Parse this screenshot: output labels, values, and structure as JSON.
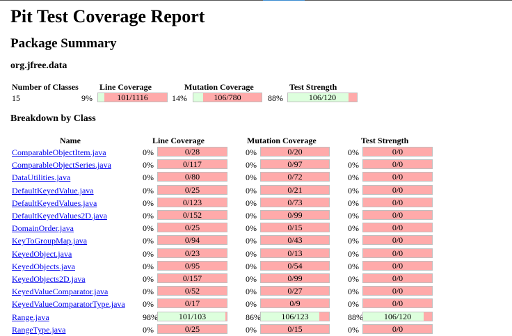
{
  "title": "Pit Test Coverage Report",
  "package_summary_heading": "Package Summary",
  "package_name": "org.jfree.data",
  "summary": {
    "headers": {
      "classes": "Number of Classes",
      "line": "Line Coverage",
      "mutation": "Mutation Coverage",
      "strength": "Test Strength"
    },
    "classes": "15",
    "line": {
      "pct": "9%",
      "text": "101/1116",
      "fraction": 0.09
    },
    "mutation": {
      "pct": "14%",
      "text": "106/780",
      "fraction": 0.14
    },
    "strength": {
      "pct": "88%",
      "text": "106/120",
      "fraction": 0.88
    }
  },
  "breakdown_heading": "Breakdown by Class",
  "table_headers": {
    "name": "Name",
    "line": "Line Coverage",
    "mutation": "Mutation Coverage",
    "strength": "Test Strength"
  },
  "rows": [
    {
      "name": "ComparableObjectItem.java",
      "line_pct": "0%",
      "line": "0/28",
      "line_f": 0,
      "mut_pct": "0%",
      "mut": "0/20",
      "mut_f": 0,
      "str_pct": "0%",
      "str": "0/0",
      "str_f": 0
    },
    {
      "name": "ComparableObjectSeries.java",
      "line_pct": "0%",
      "line": "0/117",
      "line_f": 0,
      "mut_pct": "0%",
      "mut": "0/97",
      "mut_f": 0,
      "str_pct": "0%",
      "str": "0/0",
      "str_f": 0
    },
    {
      "name": "DataUtilities.java",
      "line_pct": "0%",
      "line": "0/80",
      "line_f": 0,
      "mut_pct": "0%",
      "mut": "0/72",
      "mut_f": 0,
      "str_pct": "0%",
      "str": "0/0",
      "str_f": 0
    },
    {
      "name": "DefaultKeyedValue.java",
      "line_pct": "0%",
      "line": "0/25",
      "line_f": 0,
      "mut_pct": "0%",
      "mut": "0/21",
      "mut_f": 0,
      "str_pct": "0%",
      "str": "0/0",
      "str_f": 0
    },
    {
      "name": "DefaultKeyedValues.java",
      "line_pct": "0%",
      "line": "0/123",
      "line_f": 0,
      "mut_pct": "0%",
      "mut": "0/73",
      "mut_f": 0,
      "str_pct": "0%",
      "str": "0/0",
      "str_f": 0
    },
    {
      "name": "DefaultKeyedValues2D.java",
      "line_pct": "0%",
      "line": "0/152",
      "line_f": 0,
      "mut_pct": "0%",
      "mut": "0/99",
      "mut_f": 0,
      "str_pct": "0%",
      "str": "0/0",
      "str_f": 0
    },
    {
      "name": "DomainOrder.java",
      "line_pct": "0%",
      "line": "0/25",
      "line_f": 0,
      "mut_pct": "0%",
      "mut": "0/15",
      "mut_f": 0,
      "str_pct": "0%",
      "str": "0/0",
      "str_f": 0
    },
    {
      "name": "KeyToGroupMap.java",
      "line_pct": "0%",
      "line": "0/94",
      "line_f": 0,
      "mut_pct": "0%",
      "mut": "0/43",
      "mut_f": 0,
      "str_pct": "0%",
      "str": "0/0",
      "str_f": 0
    },
    {
      "name": "KeyedObject.java",
      "line_pct": "0%",
      "line": "0/23",
      "line_f": 0,
      "mut_pct": "0%",
      "mut": "0/13",
      "mut_f": 0,
      "str_pct": "0%",
      "str": "0/0",
      "str_f": 0
    },
    {
      "name": "KeyedObjects.java",
      "line_pct": "0%",
      "line": "0/95",
      "line_f": 0,
      "mut_pct": "0%",
      "mut": "0/54",
      "mut_f": 0,
      "str_pct": "0%",
      "str": "0/0",
      "str_f": 0
    },
    {
      "name": "KeyedObjects2D.java",
      "line_pct": "0%",
      "line": "0/157",
      "line_f": 0,
      "mut_pct": "0%",
      "mut": "0/99",
      "mut_f": 0,
      "str_pct": "0%",
      "str": "0/0",
      "str_f": 0
    },
    {
      "name": "KeyedValueComparator.java",
      "line_pct": "0%",
      "line": "0/52",
      "line_f": 0,
      "mut_pct": "0%",
      "mut": "0/27",
      "mut_f": 0,
      "str_pct": "0%",
      "str": "0/0",
      "str_f": 0
    },
    {
      "name": "KeyedValueComparatorType.java",
      "line_pct": "0%",
      "line": "0/17",
      "line_f": 0,
      "mut_pct": "0%",
      "mut": "0/9",
      "mut_f": 0,
      "str_pct": "0%",
      "str": "0/0",
      "str_f": 0
    },
    {
      "name": "Range.java",
      "line_pct": "98%",
      "line": "101/103",
      "line_f": 0.98,
      "mut_pct": "86%",
      "mut": "106/123",
      "mut_f": 0.86,
      "str_pct": "88%",
      "str": "106/120",
      "str_f": 0.88
    },
    {
      "name": "RangeType.java",
      "line_pct": "0%",
      "line": "0/25",
      "line_f": 0,
      "mut_pct": "0%",
      "mut": "0/15",
      "mut_f": 0,
      "str_pct": "0%",
      "str": "0/0",
      "str_f": 0
    }
  ]
}
